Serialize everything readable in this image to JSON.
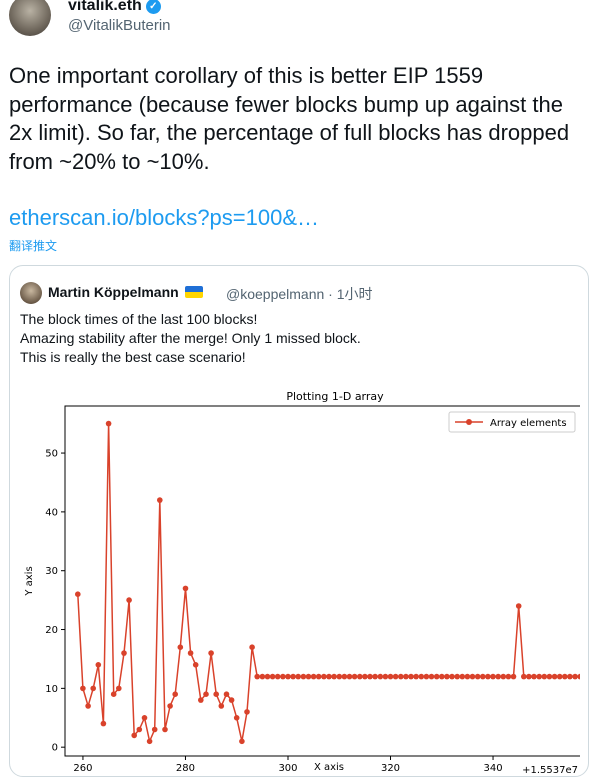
{
  "author": {
    "name": "vitalik.eth",
    "handle": "@VitalikButerin",
    "verified_icon": "verified-check-icon"
  },
  "tweet": {
    "text": "One important corollary of this is better EIP 1559 performance (because fewer blocks bump up against the 2x limit). So far, the percentage of full blocks has dropped from ~20% to ~10%.",
    "link": "etherscan.io/blocks?ps=100&…",
    "translate_label": "翻译推文"
  },
  "quoted": {
    "name": "Martin Köppelmann",
    "handle_time": "@koeppelmann · 1小时",
    "lines": [
      "The block times of the last 100 blocks!",
      "Amazing stability after the merge! Only 1 missed block.",
      "This is really the best case scenario!"
    ]
  },
  "chart_data": {
    "type": "line",
    "title": "Plotting 1-D array",
    "xlabel": "X axis",
    "ylabel": "Y axis",
    "x_offset_label": "+1.5537e7",
    "xlim": [
      256.5,
      359.5
    ],
    "ylim": [
      -1.5,
      58
    ],
    "x_ticks": [
      260,
      280,
      300,
      320,
      340,
      360
    ],
    "y_ticks": [
      0,
      10,
      20,
      30,
      40,
      50
    ],
    "legend": "top-right",
    "grid": false,
    "color": "#d9422b",
    "series": [
      {
        "name": "Array elements",
        "x_start": 259,
        "values": [
          26,
          10,
          7,
          10,
          14,
          4,
          55,
          9,
          10,
          16,
          25,
          2,
          3,
          5,
          1,
          3,
          42,
          3,
          7,
          9,
          17,
          27,
          16,
          14,
          8,
          9,
          16,
          9,
          7,
          9,
          8,
          5,
          1,
          6,
          17,
          12,
          12,
          12,
          12,
          12,
          12,
          12,
          12,
          12,
          12,
          12,
          12,
          12,
          12,
          12,
          12,
          12,
          12,
          12,
          12,
          12,
          12,
          12,
          12,
          12,
          12,
          12,
          12,
          12,
          12,
          12,
          12,
          12,
          12,
          12,
          12,
          12,
          12,
          12,
          12,
          12,
          12,
          12,
          12,
          12,
          12,
          12,
          12,
          12,
          12,
          12,
          24,
          12,
          12,
          12,
          12,
          12,
          12,
          12,
          12,
          12,
          12,
          12,
          12,
          12
        ]
      }
    ]
  }
}
